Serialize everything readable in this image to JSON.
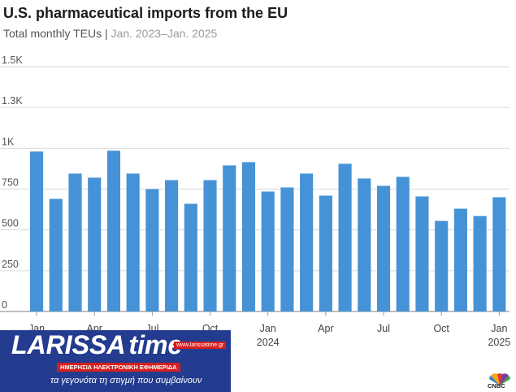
{
  "title": "U.S. pharmaceutical imports from the EU",
  "subtitle_main": "Total monthly TEUs",
  "subtitle_sep": "|",
  "subtitle_range": "Jan. 2023–Jan. 2025",
  "bar_color": "#4593d6",
  "logo": {
    "name_part1": "LARISSA",
    "name_part2": "time",
    "url": "www.larissatime.gr",
    "tagline": "ΗΜΕΡΗΣΙΑ ΗΛΕΚΤΡΟΝΙΚΗ ΕΦΗΜΕΡΙΔΑ",
    "slogan": "τα γεγονότα τη στιγμή που συμβαίνουν"
  },
  "cnbc_label": "CNBC",
  "chart_data": {
    "type": "bar",
    "title": "U.S. pharmaceutical imports from the EU",
    "subtitle": "Total monthly TEUs | Jan. 2023–Jan. 2025",
    "xlabel": "",
    "ylabel": "",
    "ylim": [
      0,
      1500
    ],
    "yticks": [
      0,
      250,
      500,
      750,
      1000,
      1250,
      1500
    ],
    "ytick_labels": [
      "0",
      "250",
      "500",
      "750",
      "1K",
      "1.3K",
      "1.5K"
    ],
    "grid": true,
    "categories": [
      "2023-01",
      "2023-02",
      "2023-03",
      "2023-04",
      "2023-05",
      "2023-06",
      "2023-07",
      "2023-08",
      "2023-09",
      "2023-10",
      "2023-11",
      "2023-12",
      "2024-01",
      "2024-02",
      "2024-03",
      "2024-04",
      "2024-05",
      "2024-06",
      "2024-07",
      "2024-08",
      "2024-09",
      "2024-10",
      "2024-11",
      "2024-12",
      "2025-01"
    ],
    "values": [
      980,
      690,
      845,
      820,
      985,
      845,
      750,
      805,
      660,
      805,
      895,
      915,
      735,
      760,
      845,
      710,
      905,
      815,
      770,
      825,
      705,
      555,
      630,
      585,
      700
    ],
    "xtick_labels": [
      {
        "index": 0,
        "line1": "Jan",
        "line2": ""
      },
      {
        "index": 3,
        "line1": "Apr",
        "line2": ""
      },
      {
        "index": 6,
        "line1": "Jul",
        "line2": ""
      },
      {
        "index": 9,
        "line1": "Oct",
        "line2": ""
      },
      {
        "index": 12,
        "line1": "Jan",
        "line2": "2024"
      },
      {
        "index": 15,
        "line1": "Apr",
        "line2": ""
      },
      {
        "index": 18,
        "line1": "Jul",
        "line2": ""
      },
      {
        "index": 21,
        "line1": "Oct",
        "line2": ""
      },
      {
        "index": 24,
        "line1": "Jan",
        "line2": "2025"
      }
    ]
  }
}
